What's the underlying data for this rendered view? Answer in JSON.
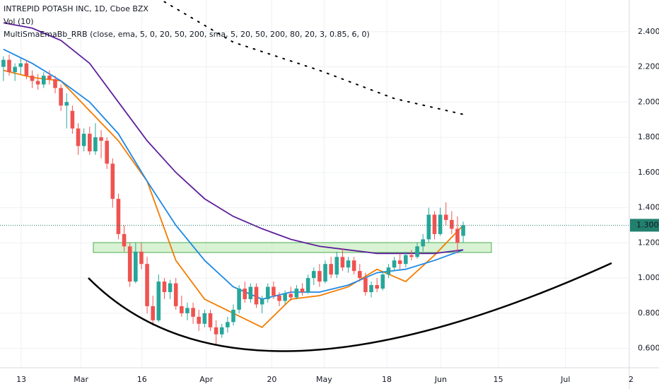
{
  "chart_data": {
    "type": "candlestick",
    "title": "INTREPID POTASH INC, 1D, Cboe BZX",
    "indicators": [
      "Vol (10)",
      "MultiSmaEmaBb_RRB (close, ema, 5, 0, 20, 50, 200, sma, 5, 20, 50, 200, 80, 20, 3, 0.85, 6, 0)"
    ],
    "up_color": "#26a69a",
    "down_color": "#ef5350",
    "grid": true,
    "xlim": [
      -0.6,
      108.9
    ],
    "ylim": [
      0.49,
      2.58
    ],
    "xticks": [
      {
        "value": 3.1,
        "label": "13"
      },
      {
        "value": 13.5,
        "label": "Mar"
      },
      {
        "value": 24.1,
        "label": "16"
      },
      {
        "value": 35.3,
        "label": "Apr"
      },
      {
        "value": 46.7,
        "label": "20"
      },
      {
        "value": 55.8,
        "label": "May"
      },
      {
        "value": 66.7,
        "label": "18"
      },
      {
        "value": 76.1,
        "label": "Jun"
      },
      {
        "value": 86.1,
        "label": "15"
      },
      {
        "value": 97.8,
        "label": "Jul"
      },
      {
        "value": 109.2,
        "label": "2"
      }
    ],
    "yticks": [
      {
        "value": 0.6,
        "label": "0.600"
      },
      {
        "value": 0.8,
        "label": "0.800"
      },
      {
        "value": 1.0,
        "label": "1.000"
      },
      {
        "value": 1.2,
        "label": "1.200"
      },
      {
        "value": 1.4,
        "label": "1.400"
      },
      {
        "value": 1.6,
        "label": "1.600"
      },
      {
        "value": 1.8,
        "label": "1.800"
      },
      {
        "value": 2.0,
        "label": "2.000"
      },
      {
        "value": 2.2,
        "label": "2.200"
      },
      {
        "value": 2.4,
        "label": "2.400"
      }
    ],
    "last_price": {
      "value": 1.3,
      "label": "1.300",
      "color": "#22806f"
    },
    "candles": [
      [
        2.2,
        2.26,
        2.12,
        2.24
      ],
      [
        2.24,
        2.27,
        2.15,
        2.17
      ],
      [
        2.17,
        2.22,
        2.12,
        2.2
      ],
      [
        2.2,
        2.25,
        2.16,
        2.22
      ],
      [
        2.22,
        2.24,
        2.13,
        2.15
      ],
      [
        2.15,
        2.18,
        2.08,
        2.12
      ],
      [
        2.12,
        2.16,
        2.07,
        2.1
      ],
      [
        2.1,
        2.17,
        2.08,
        2.15
      ],
      [
        2.15,
        2.18,
        2.1,
        2.13
      ],
      [
        2.13,
        2.15,
        2.05,
        2.08
      ],
      [
        2.08,
        2.1,
        1.95,
        1.98
      ],
      [
        1.98,
        2.05,
        1.85,
        2.0
      ],
      [
        1.95,
        1.98,
        1.82,
        1.85
      ],
      [
        1.85,
        1.88,
        1.7,
        1.75
      ],
      [
        1.75,
        1.85,
        1.72,
        1.82
      ],
      [
        1.82,
        1.86,
        1.7,
        1.72
      ],
      [
        1.72,
        1.88,
        1.7,
        1.8
      ],
      [
        1.8,
        1.84,
        1.68,
        1.78
      ],
      [
        1.78,
        1.8,
        1.62,
        1.65
      ],
      [
        1.65,
        1.68,
        1.4,
        1.45
      ],
      [
        1.45,
        1.48,
        1.22,
        1.25
      ],
      [
        1.25,
        1.3,
        1.15,
        1.18
      ],
      [
        1.18,
        1.2,
        0.95,
        0.98
      ],
      [
        0.98,
        1.2,
        0.97,
        1.15
      ],
      [
        1.15,
        1.2,
        1.05,
        1.08
      ],
      [
        1.08,
        1.12,
        0.8,
        0.84
      ],
      [
        0.84,
        0.9,
        0.73,
        0.76
      ],
      [
        0.76,
        1.02,
        0.75,
        0.98
      ],
      [
        0.98,
        1.0,
        0.88,
        0.92
      ],
      [
        0.92,
        0.99,
        0.88,
        0.97
      ],
      [
        0.97,
        1.0,
        0.82,
        0.84
      ],
      [
        0.84,
        0.9,
        0.78,
        0.8
      ],
      [
        0.8,
        0.86,
        0.76,
        0.83
      ],
      [
        0.83,
        0.86,
        0.74,
        0.78
      ],
      [
        0.78,
        0.82,
        0.7,
        0.74
      ],
      [
        0.74,
        0.82,
        0.72,
        0.8
      ],
      [
        0.8,
        0.82,
        0.7,
        0.72
      ],
      [
        0.72,
        0.76,
        0.62,
        0.68
      ],
      [
        0.68,
        0.74,
        0.66,
        0.72
      ],
      [
        0.72,
        0.78,
        0.69,
        0.75
      ],
      [
        0.75,
        0.85,
        0.73,
        0.82
      ],
      [
        0.82,
        0.96,
        0.8,
        0.94
      ],
      [
        0.94,
        0.98,
        0.86,
        0.88
      ],
      [
        0.88,
        0.97,
        0.86,
        0.95
      ],
      [
        0.95,
        0.97,
        0.83,
        0.85
      ],
      [
        0.85,
        0.9,
        0.8,
        0.88
      ],
      [
        0.88,
        0.97,
        0.86,
        0.95
      ],
      [
        0.95,
        0.98,
        0.88,
        0.9
      ],
      [
        0.9,
        0.92,
        0.84,
        0.87
      ],
      [
        0.87,
        0.93,
        0.85,
        0.91
      ],
      [
        0.91,
        0.95,
        0.87,
        0.89
      ],
      [
        0.89,
        0.96,
        0.88,
        0.94
      ],
      [
        0.94,
        0.97,
        0.9,
        0.92
      ],
      [
        0.92,
        1.02,
        0.91,
        1.0
      ],
      [
        1.0,
        1.06,
        0.96,
        1.04
      ],
      [
        1.04,
        1.08,
        0.95,
        0.98
      ],
      [
        0.98,
        1.1,
        0.97,
        1.08
      ],
      [
        1.08,
        1.12,
        1.0,
        1.02
      ],
      [
        1.02,
        1.15,
        1.0,
        1.12
      ],
      [
        1.12,
        1.17,
        1.04,
        1.06
      ],
      [
        1.06,
        1.12,
        1.03,
        1.1
      ],
      [
        1.1,
        1.12,
        1.02,
        1.04
      ],
      [
        1.04,
        1.08,
        0.98,
        1.0
      ],
      [
        1.0,
        1.03,
        0.9,
        0.92
      ],
      [
        0.92,
        0.98,
        0.89,
        0.96
      ],
      [
        0.96,
        1.0,
        0.92,
        0.94
      ],
      [
        0.94,
        1.04,
        0.93,
        1.02
      ],
      [
        1.02,
        1.08,
        1.0,
        1.06
      ],
      [
        1.06,
        1.12,
        1.04,
        1.1
      ],
      [
        1.1,
        1.14,
        1.05,
        1.08
      ],
      [
        1.08,
        1.15,
        1.06,
        1.13
      ],
      [
        1.13,
        1.16,
        1.1,
        1.12
      ],
      [
        1.12,
        1.2,
        1.11,
        1.18
      ],
      [
        1.18,
        1.25,
        1.15,
        1.22
      ],
      [
        1.22,
        1.4,
        1.2,
        1.36
      ],
      [
        1.36,
        1.38,
        1.22,
        1.25
      ],
      [
        1.25,
        1.4,
        1.24,
        1.36
      ],
      [
        1.36,
        1.43,
        1.3,
        1.33
      ],
      [
        1.33,
        1.38,
        1.25,
        1.28
      ],
      [
        1.28,
        1.35,
        1.14,
        1.2
      ],
      [
        1.24,
        1.32,
        1.2,
        1.3
      ]
    ],
    "series": [
      {
        "color": "#f57c00",
        "x": [
          0,
          5,
          10,
          15,
          20,
          25,
          30,
          35,
          40,
          45,
          50,
          55,
          60,
          65,
          70,
          75,
          80
        ],
        "values": [
          2.18,
          2.14,
          2.12,
          1.95,
          1.78,
          1.55,
          1.1,
          0.88,
          0.8,
          0.72,
          0.88,
          0.9,
          0.95,
          1.05,
          0.98,
          1.13,
          1.3
        ]
      },
      {
        "color": "#1e88e5",
        "x": [
          0,
          5,
          10,
          15,
          20,
          25,
          30,
          35,
          40,
          45,
          50,
          55,
          60,
          65,
          70,
          75,
          80
        ],
        "values": [
          2.3,
          2.22,
          2.12,
          2.0,
          1.82,
          1.55,
          1.3,
          1.1,
          0.95,
          0.88,
          0.92,
          0.92,
          0.96,
          1.03,
          1.05,
          1.1,
          1.16
        ]
      },
      {
        "color": "#5e1f9b",
        "x": [
          0,
          5,
          10,
          15,
          20,
          25,
          30,
          35,
          40,
          45,
          50,
          55,
          60,
          65,
          70,
          75,
          80
        ],
        "values": [
          2.45,
          2.42,
          2.35,
          2.22,
          2.0,
          1.78,
          1.6,
          1.45,
          1.35,
          1.28,
          1.22,
          1.18,
          1.16,
          1.14,
          1.14,
          1.14,
          1.16
        ]
      },
      {
        "color": "#000000",
        "dotted": true,
        "x": [
          28,
          40,
          55,
          68,
          80
        ],
        "values": [
          2.57,
          2.34,
          2.18,
          2.02,
          1.93
        ]
      }
    ]
  }
}
